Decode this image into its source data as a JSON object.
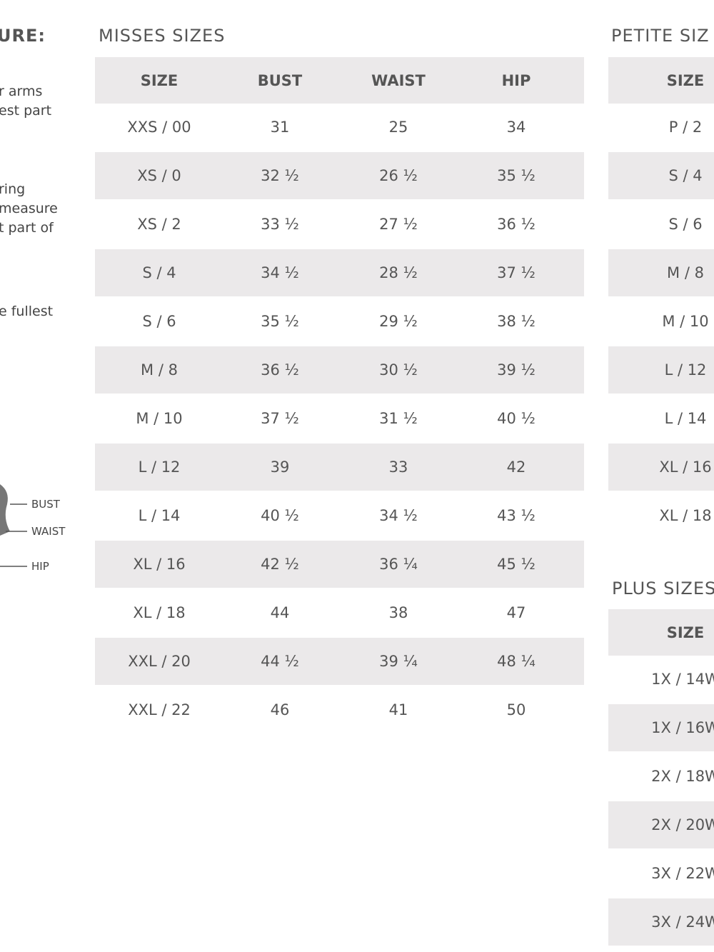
{
  "left": {
    "title": "URE:",
    "lines": [
      "r arms",
      "est part",
      "ring",
      "measure",
      "t part of",
      "e fullest"
    ],
    "figure_labels": [
      "BUST",
      "WAIST",
      "HIP"
    ]
  },
  "misses": {
    "title": "MISSES SIZES",
    "header": [
      "SIZE",
      "BUST",
      "WAIST",
      "HIP"
    ],
    "rows": [
      [
        "XXS / 00",
        "31",
        "25",
        "34"
      ],
      [
        "XS / 0",
        "32 ½",
        "26 ½",
        "35 ½"
      ],
      [
        "XS / 2",
        "33 ½",
        "27 ½",
        "36 ½"
      ],
      [
        "S / 4",
        "34 ½",
        "28 ½",
        "37 ½"
      ],
      [
        "S / 6",
        "35 ½",
        "29 ½",
        "38 ½"
      ],
      [
        "M / 8",
        "36 ½",
        "30 ½",
        "39 ½"
      ],
      [
        "M / 10",
        "37 ½",
        "31 ½",
        "40 ½"
      ],
      [
        "L / 12",
        "39",
        "33",
        "42"
      ],
      [
        "L / 14",
        "40 ½",
        "34 ½",
        "43 ½"
      ],
      [
        "XL / 16",
        "42 ½",
        "36 ¼",
        "45 ½"
      ],
      [
        "XL / 18",
        "44",
        "38",
        "47"
      ],
      [
        "XXL / 20",
        "44 ½",
        "39 ¼",
        "48 ¼"
      ],
      [
        "XXL / 22",
        "46",
        "41",
        "50"
      ]
    ]
  },
  "petite": {
    "title": "PETITE SIZ",
    "header": [
      "SIZE"
    ],
    "rows": [
      [
        "P / 2"
      ],
      [
        "S / 4"
      ],
      [
        "S / 6"
      ],
      [
        "M / 8"
      ],
      [
        "M / 10"
      ],
      [
        "L / 12"
      ],
      [
        "L / 14"
      ],
      [
        "XL / 16"
      ],
      [
        "XL / 18"
      ]
    ]
  },
  "plus": {
    "title": "PLUS SIZES",
    "header": [
      "SIZE"
    ],
    "rows": [
      [
        "1X / 14W"
      ],
      [
        "1X / 16W"
      ],
      [
        "2X / 18W"
      ],
      [
        "2X / 20W"
      ],
      [
        "3X / 22W"
      ],
      [
        "3X / 24W"
      ]
    ]
  }
}
